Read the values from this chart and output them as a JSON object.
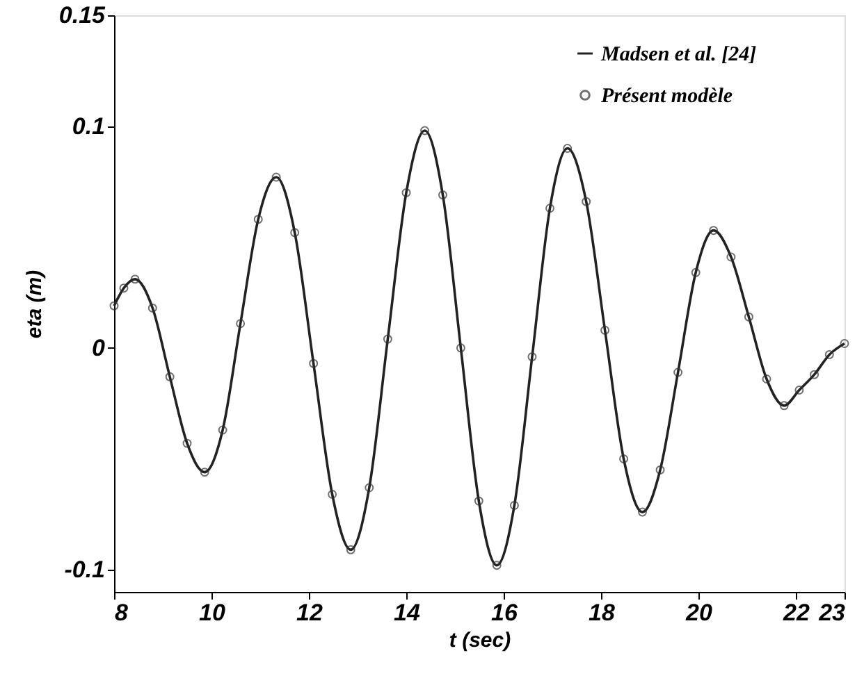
{
  "chart_data": {
    "type": "line",
    "xlabel": "t (sec)",
    "ylabel": "eta (m)",
    "xlim": [
      8,
      23
    ],
    "xticks": [
      8,
      10,
      12,
      14,
      16,
      18,
      20,
      22,
      23
    ],
    "ylim": [
      -0.11,
      0.15
    ],
    "yticks": [
      {
        "value": -0.1,
        "label": "-0.1"
      },
      {
        "value": 0,
        "label": "0"
      },
      {
        "value": 0.1,
        "label": "0.1"
      },
      0.15
    ],
    "grid": false,
    "legend": "top right",
    "x": [
      8.0,
      8.2,
      8.43,
      8.79,
      9.145,
      9.5,
      9.86,
      10.23,
      10.595,
      10.96,
      11.33,
      11.71,
      12.095,
      12.48,
      12.86,
      13.24,
      13.62,
      14.0,
      14.38,
      14.75,
      15.12,
      15.49,
      15.86,
      16.22,
      16.585,
      16.95,
      17.31,
      17.695,
      18.08,
      18.465,
      18.85,
      19.215,
      19.58,
      19.945,
      20.31,
      20.67,
      21.035,
      21.4,
      21.76,
      22.07,
      22.38,
      22.69,
      23.0
    ],
    "series": [
      {
        "name": "Madsen et al. [24]",
        "color": "#222222",
        "line_style": "solid",
        "marker": "none",
        "values": [
          0.019,
          0.027,
          0.031,
          0.018,
          -0.013,
          -0.043,
          -0.056,
          -0.037,
          0.011,
          0.058,
          0.077,
          0.052,
          -0.007,
          -0.066,
          -0.091,
          -0.063,
          0.004,
          0.07,
          0.098,
          0.069,
          0.0,
          -0.069,
          -0.098,
          -0.071,
          -0.004,
          0.063,
          0.09,
          0.066,
          0.008,
          -0.05,
          -0.074,
          -0.055,
          -0.011,
          0.034,
          0.053,
          0.041,
          0.014,
          -0.014,
          -0.026,
          -0.019,
          -0.012,
          -0.003,
          0.002
        ]
      },
      {
        "name": "Présent modèle",
        "type": "scatter",
        "color": "#333333",
        "marker": "circle",
        "values": [
          0.019,
          0.027,
          0.031,
          0.018,
          -0.013,
          -0.043,
          -0.056,
          -0.037,
          0.011,
          0.058,
          0.077,
          0.052,
          -0.007,
          -0.066,
          -0.091,
          -0.063,
          0.004,
          0.07,
          0.098,
          0.069,
          0.0,
          -0.069,
          -0.098,
          -0.071,
          -0.004,
          0.063,
          0.09,
          0.066,
          0.008,
          -0.05,
          -0.074,
          -0.055,
          -0.011,
          0.034,
          0.053,
          0.041,
          0.014,
          -0.014,
          -0.026,
          -0.019,
          -0.012,
          -0.003,
          0.002
        ]
      }
    ]
  }
}
